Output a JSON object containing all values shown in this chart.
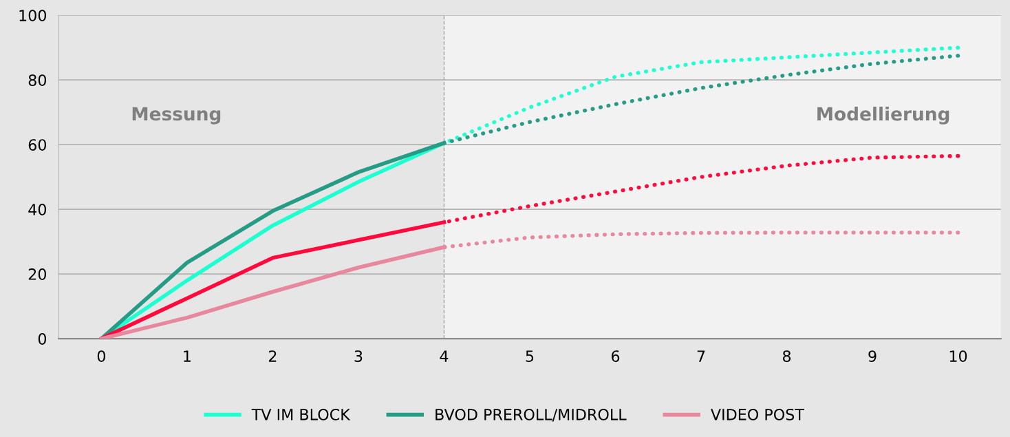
{
  "chart_data": {
    "type": "line",
    "xlim": [
      -0.5,
      10.5
    ],
    "ylim": [
      0,
      100
    ],
    "xticks": [
      0,
      1,
      2,
      3,
      4,
      5,
      6,
      7,
      8,
      9,
      10
    ],
    "yticks": [
      0,
      20,
      40,
      60,
      80,
      100
    ],
    "grid": "y",
    "legend": "bottom",
    "marker": "none",
    "bands": [
      {
        "axis": "x",
        "from": 4,
        "to": 10.5,
        "color": "#f2f2f2"
      }
    ],
    "ref_lines": [
      {
        "axis": "x",
        "value": 4,
        "color": "#a6a6a6",
        "line_style": "dashed"
      }
    ],
    "annotations": [
      "Messung",
      "Modellierung"
    ],
    "series": [
      {
        "name": "TV IM BLOCK",
        "color": "#1effd2",
        "line_style": "solid",
        "x": [
          0,
          1,
          2,
          3,
          4
        ],
        "values": [
          0,
          18,
          35,
          48.5,
          60.5
        ]
      },
      {
        "name": "BVOD PREROLL/MIDROLL",
        "color": "#259c86",
        "line_style": "solid",
        "x": [
          0,
          1,
          2,
          3,
          4
        ],
        "values": [
          0,
          23.5,
          39.5,
          51.5,
          60.5
        ]
      },
      {
        "color": "#ff0a3c",
        "line_style": "solid",
        "x": [
          0,
          1,
          2,
          3,
          4
        ],
        "values": [
          0,
          12.5,
          25,
          30.5,
          36
        ]
      },
      {
        "name": "VIDEO POST",
        "color": "#e8889e",
        "line_style": "solid",
        "x": [
          0,
          1,
          2,
          3,
          4
        ],
        "values": [
          0,
          6.5,
          14.5,
          22,
          28.3
        ]
      },
      {
        "color": "#1effd2",
        "line_style": "dotted",
        "x": [
          4,
          5,
          6,
          7,
          8,
          9,
          10
        ],
        "values": [
          60.5,
          71.5,
          81,
          85.5,
          87,
          88.5,
          90
        ]
      },
      {
        "color": "#259c86",
        "line_style": "dotted",
        "x": [
          4,
          5,
          6,
          7,
          8,
          9,
          10
        ],
        "values": [
          60.5,
          67,
          72.5,
          77.5,
          81.5,
          85,
          87.5
        ]
      },
      {
        "color": "#ff0a3c",
        "line_style": "dotted",
        "x": [
          4,
          5,
          6,
          7,
          8,
          9,
          10
        ],
        "values": [
          36,
          41,
          45.5,
          50,
          53.5,
          56,
          56.5
        ]
      },
      {
        "color": "#e8889e",
        "line_style": "dotted",
        "x": [
          4,
          5,
          6,
          7,
          8,
          9,
          10
        ],
        "values": [
          28.3,
          31.3,
          32.3,
          32.7,
          32.8,
          32.8,
          32.8
        ]
      }
    ]
  }
}
